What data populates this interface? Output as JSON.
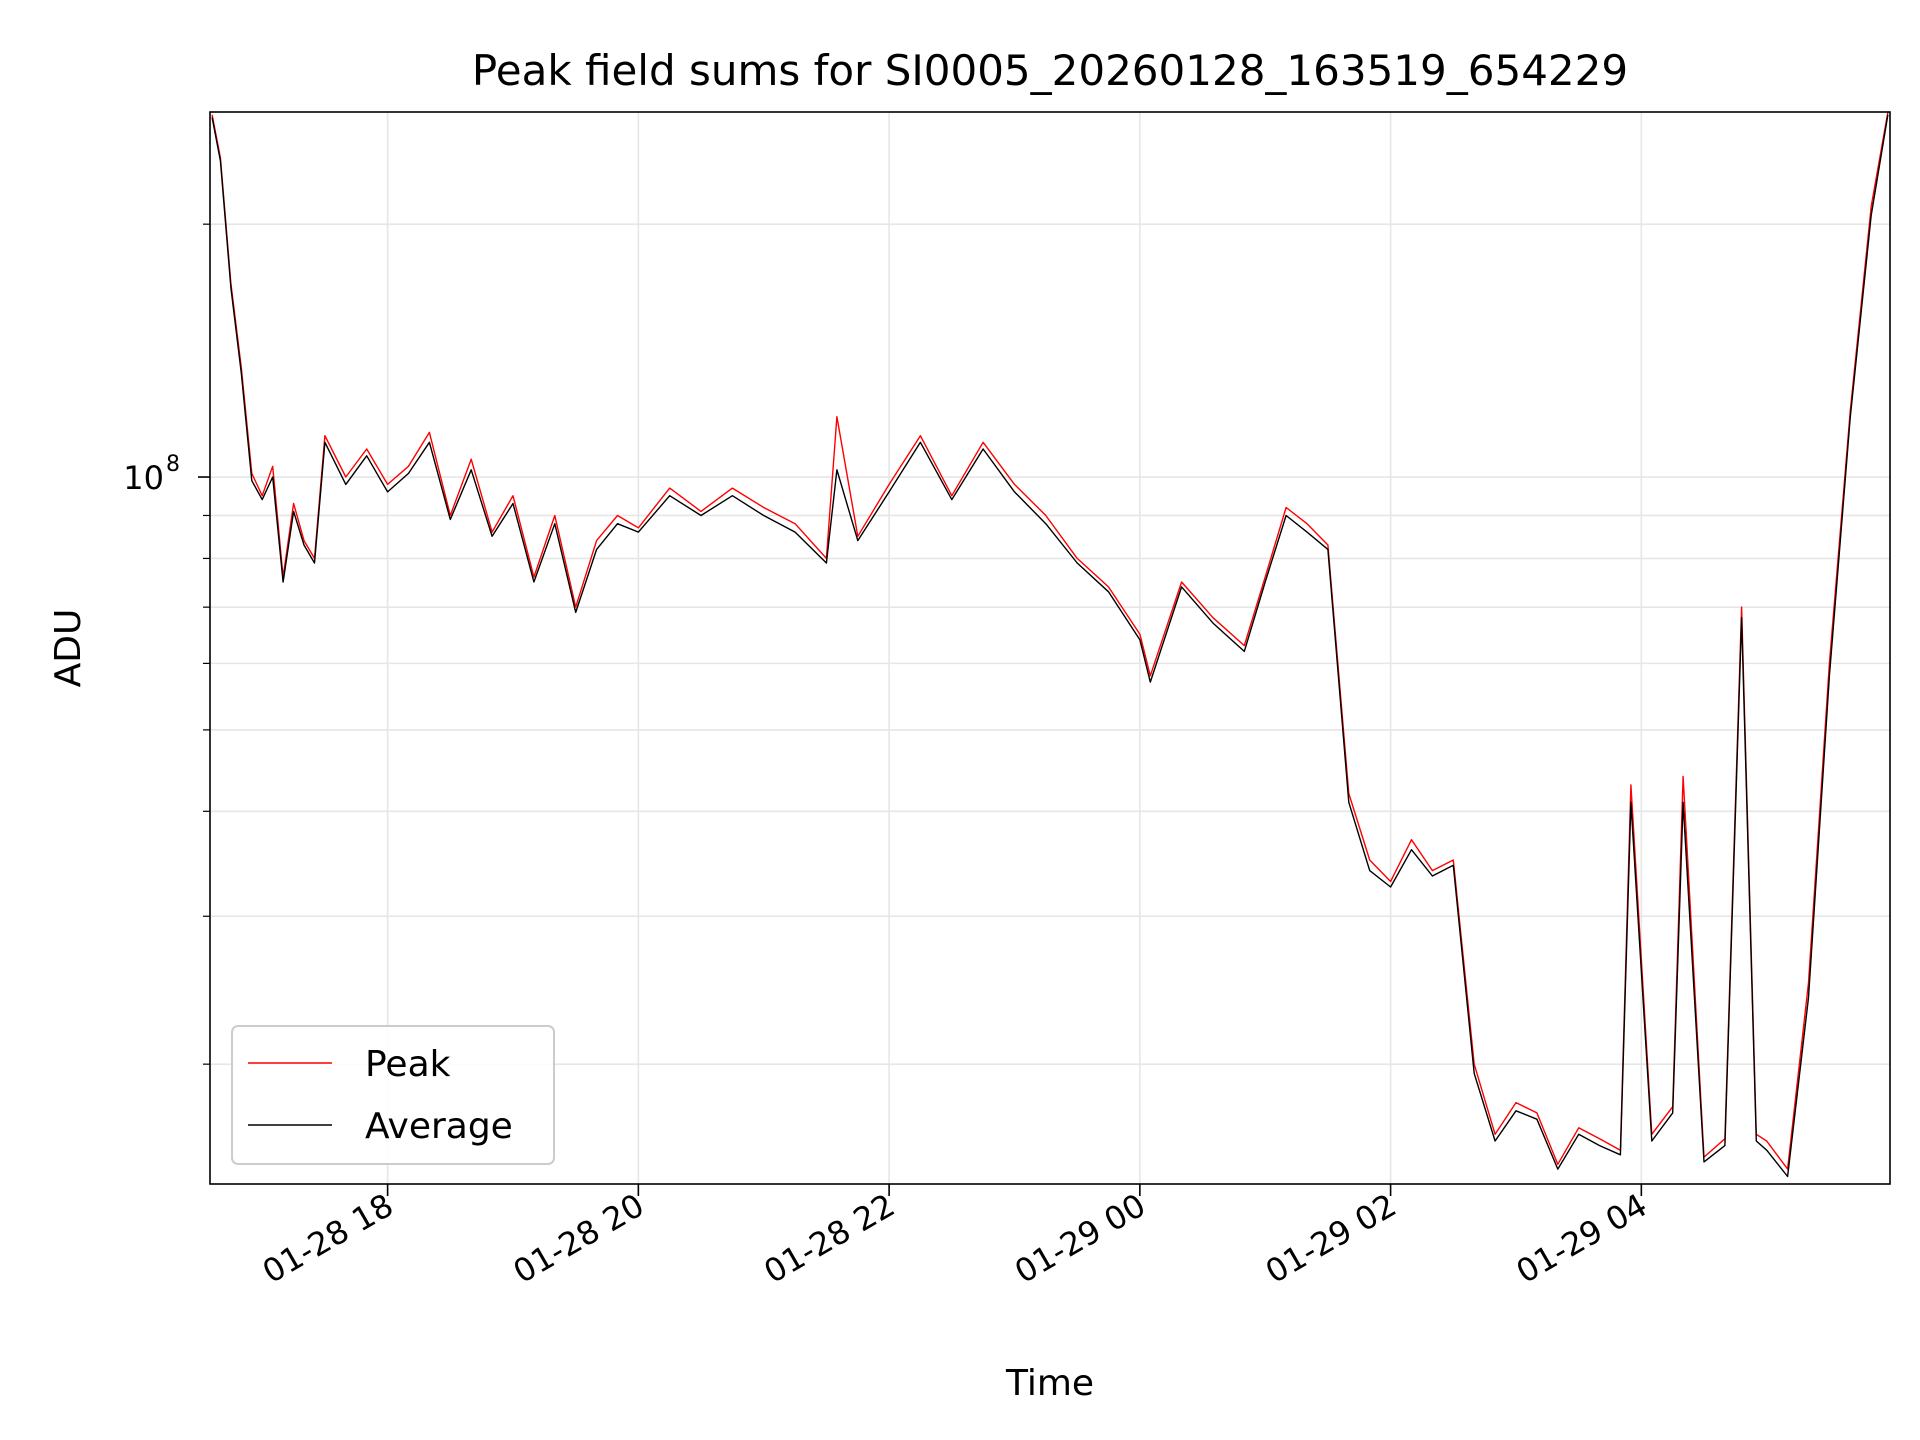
{
  "chart_data": {
    "type": "line",
    "title": "Peak field sums for SI0005_20260128_163519_654229",
    "xlabel": "Time",
    "ylabel": "ADU",
    "y_scale": "log",
    "grid": true,
    "legend_position": "lower-left",
    "xlim": [
      "2026-01-28 16:35",
      "2026-01-29 05:59"
    ],
    "ylim": [
      14400000,
      272000000
    ],
    "x_ticks": [
      "01-28 18",
      "01-28 20",
      "01-28 22",
      "01-29 00",
      "01-29 02",
      "01-29 04"
    ],
    "y_tick_label": {
      "base": "10",
      "exponent": "8"
    },
    "colors": {
      "Peak": "#ff0000",
      "Average": "#000000"
    },
    "series": [
      {
        "name": "Peak",
        "x": [
          "2026-01-28 16:36",
          "2026-01-28 16:40",
          "2026-01-28 16:45",
          "2026-01-28 16:50",
          "2026-01-28 16:55",
          "2026-01-28 17:00",
          "2026-01-28 17:05",
          "2026-01-28 17:10",
          "2026-01-28 17:15",
          "2026-01-28 17:20",
          "2026-01-28 17:25",
          "2026-01-28 17:30",
          "2026-01-28 17:40",
          "2026-01-28 17:50",
          "2026-01-28 18:00",
          "2026-01-28 18:10",
          "2026-01-28 18:20",
          "2026-01-28 18:30",
          "2026-01-28 18:40",
          "2026-01-28 18:50",
          "2026-01-28 19:00",
          "2026-01-28 19:10",
          "2026-01-28 19:20",
          "2026-01-28 19:30",
          "2026-01-28 19:40",
          "2026-01-28 19:50",
          "2026-01-28 20:00",
          "2026-01-28 20:15",
          "2026-01-28 20:30",
          "2026-01-28 20:45",
          "2026-01-28 21:00",
          "2026-01-28 21:15",
          "2026-01-28 21:30",
          "2026-01-28 21:35",
          "2026-01-28 21:45",
          "2026-01-28 22:00",
          "2026-01-28 22:15",
          "2026-01-28 22:30",
          "2026-01-28 22:45",
          "2026-01-28 23:00",
          "2026-01-28 23:15",
          "2026-01-28 23:30",
          "2026-01-28 23:45",
          "2026-01-29 00:00",
          "2026-01-29 00:05",
          "2026-01-29 00:20",
          "2026-01-29 00:35",
          "2026-01-29 00:50",
          "2026-01-29 01:00",
          "2026-01-29 01:10",
          "2026-01-29 01:20",
          "2026-01-29 01:30",
          "2026-01-29 01:40",
          "2026-01-29 01:50",
          "2026-01-29 02:00",
          "2026-01-29 02:10",
          "2026-01-29 02:20",
          "2026-01-29 02:30",
          "2026-01-29 02:40",
          "2026-01-29 02:50",
          "2026-01-29 03:00",
          "2026-01-29 03:10",
          "2026-01-29 03:20",
          "2026-01-29 03:30",
          "2026-01-29 03:40",
          "2026-01-29 03:50",
          "2026-01-29 03:55",
          "2026-01-29 04:05",
          "2026-01-29 04:15",
          "2026-01-29 04:20",
          "2026-01-29 04:30",
          "2026-01-29 04:40",
          "2026-01-29 04:48",
          "2026-01-29 04:55",
          "2026-01-29 05:00",
          "2026-01-29 05:10",
          "2026-01-29 05:20",
          "2026-01-29 05:30",
          "2026-01-29 05:40",
          "2026-01-29 05:50",
          "2026-01-29 05:58"
        ],
        "values": [
          270000000,
          240000000,
          170000000,
          135000000,
          101000000,
          95000000,
          103000000,
          76000000,
          93000000,
          84000000,
          80000000,
          112000000,
          100000000,
          108000000,
          98000000,
          103000000,
          113000000,
          90000000,
          105000000,
          86000000,
          95000000,
          76000000,
          90000000,
          70000000,
          84000000,
          90000000,
          87000000,
          97000000,
          91000000,
          97000000,
          92000000,
          88000000,
          80000000,
          118000000,
          85000000,
          98000000,
          112000000,
          95000000,
          110000000,
          98000000,
          90000000,
          80000000,
          74000000,
          65000000,
          58000000,
          75000000,
          68000000,
          63000000,
          76000000,
          92000000,
          88000000,
          83000000,
          42000000,
          35000000,
          33000000,
          37000000,
          34000000,
          35000000,
          20000000,
          16500000,
          18000000,
          17500000,
          15200000,
          16800000,
          16300000,
          15800000,
          43000000,
          16500000,
          17800000,
          44000000,
          15500000,
          16300000,
          70000000,
          16500000,
          16200000,
          15000000,
          25000000,
          60000000,
          120000000,
          210000000,
          272000000
        ]
      },
      {
        "name": "Average",
        "x": [
          "2026-01-28 16:36",
          "2026-01-28 16:40",
          "2026-01-28 16:45",
          "2026-01-28 16:50",
          "2026-01-28 16:55",
          "2026-01-28 17:00",
          "2026-01-28 17:05",
          "2026-01-28 17:10",
          "2026-01-28 17:15",
          "2026-01-28 17:20",
          "2026-01-28 17:25",
          "2026-01-28 17:30",
          "2026-01-28 17:40",
          "2026-01-28 17:50",
          "2026-01-28 18:00",
          "2026-01-28 18:10",
          "2026-01-28 18:20",
          "2026-01-28 18:30",
          "2026-01-28 18:40",
          "2026-01-28 18:50",
          "2026-01-28 19:00",
          "2026-01-28 19:10",
          "2026-01-28 19:20",
          "2026-01-28 19:30",
          "2026-01-28 19:40",
          "2026-01-28 19:50",
          "2026-01-28 20:00",
          "2026-01-28 20:15",
          "2026-01-28 20:30",
          "2026-01-28 20:45",
          "2026-01-28 21:00",
          "2026-01-28 21:15",
          "2026-01-28 21:30",
          "2026-01-28 21:35",
          "2026-01-28 21:45",
          "2026-01-28 22:00",
          "2026-01-28 22:15",
          "2026-01-28 22:30",
          "2026-01-28 22:45",
          "2026-01-28 23:00",
          "2026-01-28 23:15",
          "2026-01-28 23:30",
          "2026-01-28 23:45",
          "2026-01-29 00:00",
          "2026-01-29 00:05",
          "2026-01-29 00:20",
          "2026-01-29 00:35",
          "2026-01-29 00:50",
          "2026-01-29 01:00",
          "2026-01-29 01:10",
          "2026-01-29 01:20",
          "2026-01-29 01:30",
          "2026-01-29 01:40",
          "2026-01-29 01:50",
          "2026-01-29 02:00",
          "2026-01-29 02:10",
          "2026-01-29 02:20",
          "2026-01-29 02:30",
          "2026-01-29 02:40",
          "2026-01-29 02:50",
          "2026-01-29 03:00",
          "2026-01-29 03:10",
          "2026-01-29 03:20",
          "2026-01-29 03:30",
          "2026-01-29 03:40",
          "2026-01-29 03:50",
          "2026-01-29 03:55",
          "2026-01-29 04:05",
          "2026-01-29 04:15",
          "2026-01-29 04:20",
          "2026-01-29 04:30",
          "2026-01-29 04:40",
          "2026-01-29 04:48",
          "2026-01-29 04:55",
          "2026-01-29 05:00",
          "2026-01-29 05:10",
          "2026-01-29 05:20",
          "2026-01-29 05:30",
          "2026-01-29 05:40",
          "2026-01-29 05:50",
          "2026-01-29 05:58"
        ],
        "values": [
          268000000,
          238000000,
          168000000,
          133000000,
          99000000,
          94000000,
          100000000,
          75000000,
          91000000,
          83000000,
          79000000,
          110000000,
          98000000,
          106000000,
          96000000,
          101000000,
          110000000,
          89000000,
          102000000,
          85000000,
          93000000,
          75000000,
          88000000,
          69000000,
          82000000,
          88000000,
          86000000,
          95000000,
          90000000,
          95000000,
          90000000,
          86000000,
          79000000,
          102000000,
          84000000,
          96000000,
          110000000,
          94000000,
          108000000,
          96000000,
          88000000,
          79000000,
          73000000,
          64000000,
          57000000,
          74000000,
          67000000,
          62000000,
          75000000,
          90000000,
          86000000,
          82000000,
          41000000,
          34000000,
          32500000,
          36000000,
          33500000,
          34500000,
          19500000,
          16200000,
          17600000,
          17200000,
          15000000,
          16500000,
          16000000,
          15600000,
          41000000,
          16200000,
          17500000,
          41000000,
          15300000,
          16000000,
          68000000,
          16200000,
          15800000,
          14700000,
          24000000,
          58000000,
          118000000,
          205000000,
          270000000
        ]
      }
    ]
  }
}
